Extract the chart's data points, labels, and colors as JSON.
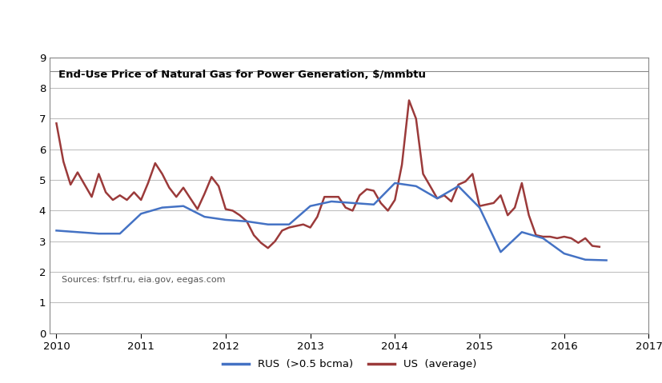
{
  "title": "End-Use Price of Natural Gas for Power Generation, $/mmbtu",
  "source_text": "Sources: fstrf.ru, eia.gov, eegas.com",
  "legend_rus": "RUS  (>0.5 bcma)",
  "legend_us": "US  (average)",
  "color_rus": "#4472C4",
  "color_us": "#9B3A3A",
  "ylim": [
    0,
    9
  ],
  "yticks": [
    0,
    1,
    2,
    3,
    4,
    5,
    6,
    7,
    8,
    9
  ],
  "xlim_start": 2009.92,
  "xlim_end": 2017.0,
  "xticks": [
    2010,
    2011,
    2012,
    2013,
    2014,
    2015,
    2016,
    2017
  ],
  "rus_x": [
    2010.0,
    2010.25,
    2010.5,
    2010.75,
    2011.0,
    2011.25,
    2011.5,
    2011.75,
    2012.0,
    2012.25,
    2012.5,
    2012.75,
    2013.0,
    2013.25,
    2013.5,
    2013.75,
    2014.0,
    2014.25,
    2014.5,
    2014.75,
    2015.0,
    2015.25,
    2015.5,
    2015.75,
    2016.0,
    2016.25,
    2016.5
  ],
  "rus_y": [
    3.35,
    3.3,
    3.25,
    3.25,
    3.9,
    4.1,
    4.15,
    3.8,
    3.7,
    3.65,
    3.55,
    3.55,
    4.15,
    4.3,
    4.25,
    4.2,
    4.9,
    4.8,
    4.4,
    4.8,
    4.1,
    2.65,
    3.3,
    3.1,
    2.6,
    2.4,
    2.38
  ],
  "us_x": [
    2010.0,
    2010.083,
    2010.167,
    2010.25,
    2010.333,
    2010.417,
    2010.5,
    2010.583,
    2010.667,
    2010.75,
    2010.833,
    2010.917,
    2011.0,
    2011.083,
    2011.167,
    2011.25,
    2011.333,
    2011.417,
    2011.5,
    2011.583,
    2011.667,
    2011.75,
    2011.833,
    2011.917,
    2012.0,
    2012.083,
    2012.167,
    2012.25,
    2012.333,
    2012.417,
    2012.5,
    2012.583,
    2012.667,
    2012.75,
    2012.833,
    2012.917,
    2013.0,
    2013.083,
    2013.167,
    2013.25,
    2013.333,
    2013.417,
    2013.5,
    2013.583,
    2013.667,
    2013.75,
    2013.833,
    2013.917,
    2014.0,
    2014.083,
    2014.167,
    2014.25,
    2014.333,
    2014.417,
    2014.5,
    2014.583,
    2014.667,
    2014.75,
    2014.833,
    2014.917,
    2015.0,
    2015.083,
    2015.167,
    2015.25,
    2015.333,
    2015.417,
    2015.5,
    2015.583,
    2015.667,
    2015.75,
    2015.833,
    2015.917,
    2016.0,
    2016.083,
    2016.167,
    2016.25,
    2016.333,
    2016.417
  ],
  "us_y": [
    6.85,
    5.6,
    4.85,
    5.25,
    4.85,
    4.45,
    5.2,
    4.6,
    4.35,
    4.5,
    4.35,
    4.6,
    4.35,
    4.9,
    5.55,
    5.2,
    4.75,
    4.45,
    4.75,
    4.4,
    4.05,
    4.55,
    5.1,
    4.8,
    4.05,
    4.0,
    3.85,
    3.65,
    3.2,
    2.95,
    2.78,
    3.0,
    3.35,
    3.45,
    3.5,
    3.55,
    3.45,
    3.8,
    4.45,
    4.45,
    4.45,
    4.1,
    4.0,
    4.5,
    4.7,
    4.65,
    4.25,
    4.0,
    4.35,
    5.5,
    7.6,
    7.0,
    5.2,
    4.8,
    4.4,
    4.5,
    4.3,
    4.85,
    4.95,
    5.2,
    4.15,
    4.2,
    4.25,
    4.5,
    3.85,
    4.1,
    4.9,
    3.85,
    3.2,
    3.15,
    3.15,
    3.1,
    3.15,
    3.1,
    2.95,
    3.1,
    2.85,
    2.82
  ],
  "background_color": "#FFFFFF",
  "grid_color": "#C0C0C0",
  "box_color": "#888888"
}
